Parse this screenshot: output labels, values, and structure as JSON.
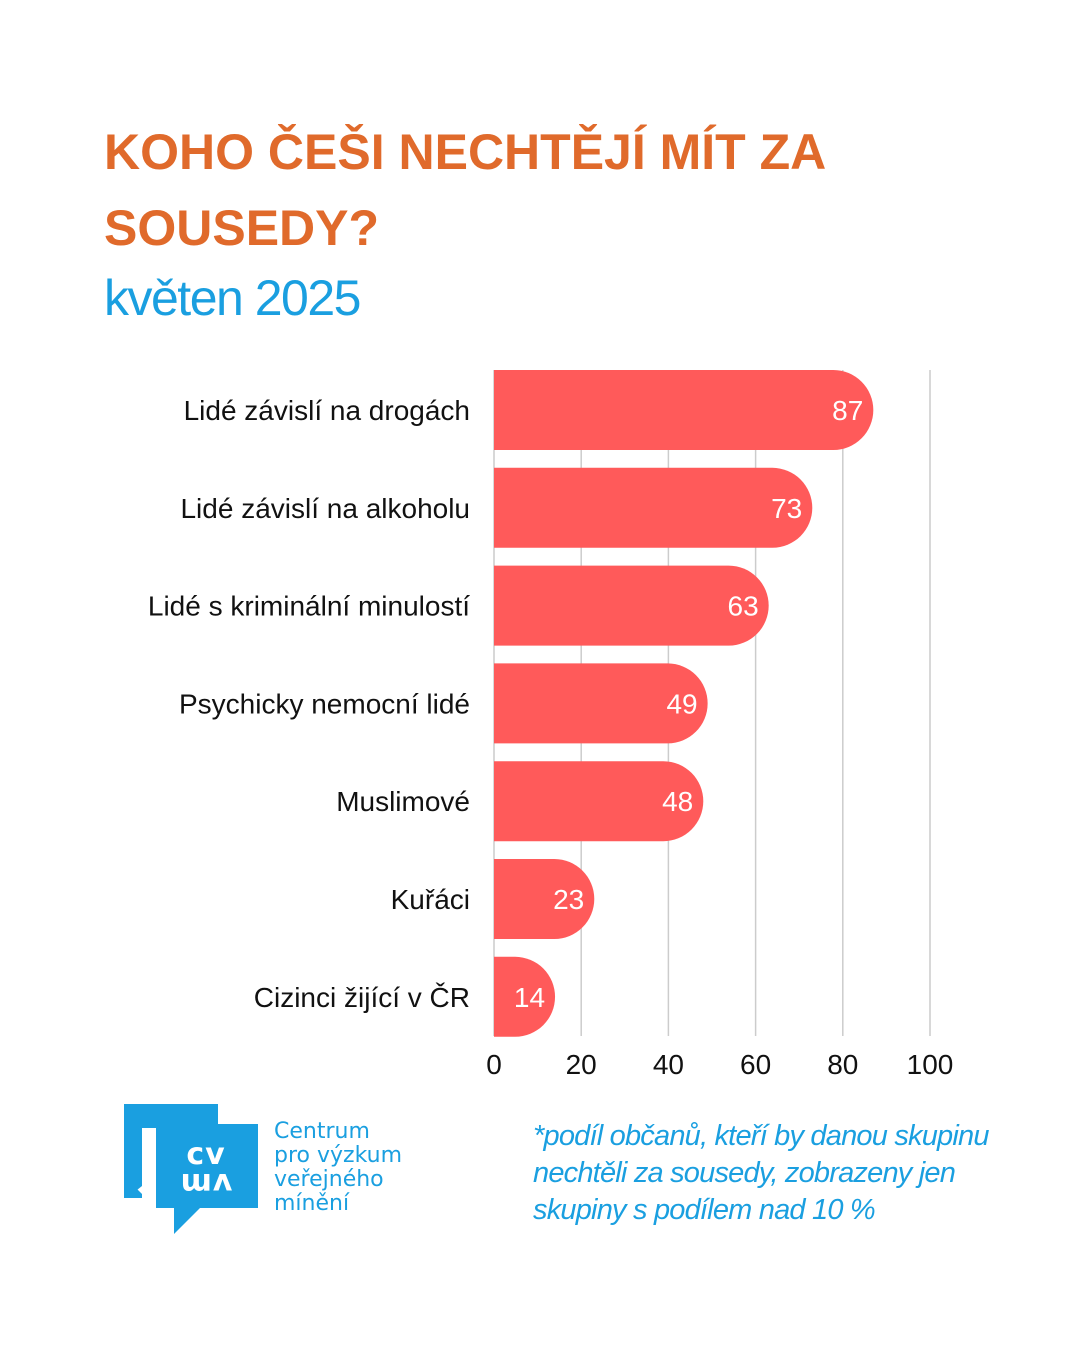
{
  "header": {
    "title": "KOHO ČEŠI NECHTĚJÍ MÍT ZA SOUSEDY?",
    "subtitle": "květen 2025"
  },
  "colors": {
    "title": "#e06a2b",
    "accent": "#1a9fe0",
    "bar": "#ff5a5a",
    "grid": "#cccccc"
  },
  "chart_data": {
    "type": "bar",
    "orientation": "horizontal",
    "title": "KOHO ČEŠI NECHTĚJÍ MÍT ZA SOUSEDY?",
    "subtitle": "květen 2025",
    "categories": [
      "Lidé závislí na drogách",
      "Lidé závislí na alkoholu",
      "Lidé s kriminální minulostí",
      "Psychicky nemocní lidé",
      "Muslimové",
      "Kuřáci",
      "Cizinci žijící v ČR"
    ],
    "values": [
      87,
      73,
      63,
      49,
      48,
      23,
      14
    ],
    "xlim": [
      0,
      100
    ],
    "xticks": [
      "0",
      "20",
      "40",
      "60",
      "80",
      "100"
    ],
    "xlabel": "",
    "ylabel": "",
    "grid": true,
    "data_labels": true
  },
  "footer": {
    "logo_mark": "CVVM",
    "logo_lines": [
      "Centrum",
      "pro výzkum",
      "veřejného",
      "mínění"
    ],
    "note": "*podíl občanů, kteří by danou skupinu nechtěli za sousedy, zobrazeny jen skupiny s podílem nad 10 %"
  }
}
